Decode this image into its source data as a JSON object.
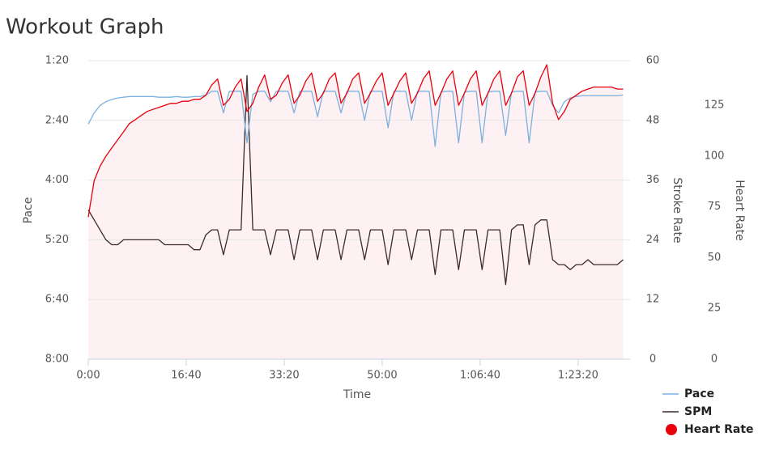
{
  "chart_data": {
    "type": "line",
    "title": "Workout Graph",
    "xlabel": "Time",
    "ylabel": "Pace",
    "y2label": "Stroke Rate",
    "y3label": "Heart Rate",
    "x": [
      0,
      60,
      120,
      180,
      240,
      300,
      360,
      420,
      480,
      540,
      600,
      660,
      720,
      780,
      840,
      900,
      960,
      1020,
      1080,
      1140,
      1200,
      1260,
      1320,
      1380,
      1440,
      1500,
      1560,
      1620,
      1680,
      1740,
      1800,
      1860,
      1920,
      1980,
      2040,
      2100,
      2160,
      2220,
      2280,
      2340,
      2400,
      2460,
      2520,
      2580,
      2640,
      2700,
      2760,
      2820,
      2880,
      2940,
      3000,
      3060,
      3120,
      3180,
      3240,
      3300,
      3360,
      3420,
      3480,
      3540,
      3600,
      3660,
      3720,
      3780,
      3840,
      3900,
      3960,
      4020,
      4080,
      4140,
      4200,
      4260,
      4320,
      4380,
      4440,
      4500,
      4560,
      4620,
      4680,
      4740,
      4800,
      4860,
      4920,
      4980,
      5040,
      5100,
      5160,
      5220,
      5280,
      5340,
      5400,
      5460
    ],
    "xlim": [
      0,
      5530
    ],
    "xticks": [
      {
        "value": 0,
        "label": "0:00"
      },
      {
        "value": 1000,
        "label": "16:40"
      },
      {
        "value": 2000,
        "label": "33:20"
      },
      {
        "value": 3000,
        "label": "50:00"
      },
      {
        "value": 4000,
        "label": "1:06:40"
      },
      {
        "value": 5000,
        "label": "1:23:20"
      }
    ],
    "ylim": [
      480,
      80
    ],
    "yticks": [
      {
        "value": 80,
        "label": "1:20"
      },
      {
        "value": 160,
        "label": "2:40"
      },
      {
        "value": 240,
        "label": "4:00"
      },
      {
        "value": 320,
        "label": "5:20"
      },
      {
        "value": 400,
        "label": "6:40"
      },
      {
        "value": 480,
        "label": "8:00"
      }
    ],
    "y2lim": [
      0,
      60
    ],
    "y2ticks": [
      0,
      12,
      24,
      36,
      48,
      60
    ],
    "y3lim": [
      0,
      147
    ],
    "y3ticks": [
      0,
      25,
      50,
      75,
      100,
      125
    ],
    "grid": true,
    "legend_position": "bottom-right",
    "series": [
      {
        "name": "Pace",
        "color": "#7cb1e0",
        "axis": "y",
        "legend_marker": "line",
        "values": [
          165,
          150,
          140,
          135,
          132,
          130,
          129,
          128,
          128,
          128,
          128,
          128,
          129,
          129,
          129,
          128,
          129,
          129,
          128,
          128,
          126,
          121,
          121,
          150,
          121,
          121,
          121,
          190,
          125,
          121,
          121,
          135,
          121,
          121,
          121,
          150,
          121,
          121,
          121,
          155,
          121,
          121,
          121,
          150,
          121,
          121,
          121,
          160,
          121,
          121,
          121,
          170,
          121,
          121,
          121,
          160,
          121,
          121,
          121,
          195,
          122,
          121,
          121,
          190,
          122,
          121,
          121,
          190,
          122,
          121,
          121,
          180,
          122,
          121,
          121,
          190,
          122,
          121,
          121,
          140,
          150,
          135,
          130,
          128,
          127,
          127,
          127,
          127,
          127,
          127,
          127,
          126
        ]
      },
      {
        "name": "SPM",
        "color": "#3a2a2e",
        "axis": "y2",
        "legend_marker": "line",
        "values": [
          30,
          28,
          26,
          24,
          23,
          23,
          24,
          24,
          24,
          24,
          24,
          24,
          24,
          23,
          23,
          23,
          23,
          23,
          22,
          22,
          25,
          26,
          26,
          21,
          26,
          26,
          26,
          57,
          26,
          26,
          26,
          21,
          26,
          26,
          26,
          20,
          26,
          26,
          26,
          20,
          26,
          26,
          26,
          20,
          26,
          26,
          26,
          20,
          26,
          26,
          26,
          19,
          26,
          26,
          26,
          20,
          26,
          26,
          26,
          17,
          26,
          26,
          26,
          18,
          26,
          26,
          26,
          18,
          26,
          26,
          26,
          15,
          26,
          27,
          27,
          19,
          27,
          28,
          28,
          20,
          19,
          19,
          18,
          19,
          19,
          20,
          19,
          19,
          19,
          19,
          19,
          20
        ]
      },
      {
        "name": "Heart Rate",
        "color": "#e8000b",
        "axis": "y3",
        "legend_marker": "circle",
        "area_color": "#fdf1f3",
        "values": [
          70,
          88,
          95,
          100,
          104,
          108,
          112,
          116,
          118,
          120,
          122,
          123,
          124,
          125,
          126,
          126,
          127,
          127,
          128,
          128,
          130,
          135,
          138,
          125,
          128,
          134,
          138,
          122,
          126,
          134,
          140,
          128,
          130,
          136,
          140,
          126,
          130,
          137,
          141,
          127,
          131,
          138,
          141,
          126,
          131,
          138,
          141,
          126,
          131,
          137,
          141,
          125,
          131,
          137,
          141,
          126,
          131,
          138,
          142,
          125,
          131,
          138,
          142,
          125,
          131,
          138,
          142,
          125,
          131,
          138,
          142,
          125,
          131,
          139,
          142,
          125,
          131,
          139,
          145,
          126,
          118,
          122,
          128,
          130,
          132,
          133,
          134,
          134,
          134,
          134,
          133,
          133
        ]
      }
    ]
  }
}
